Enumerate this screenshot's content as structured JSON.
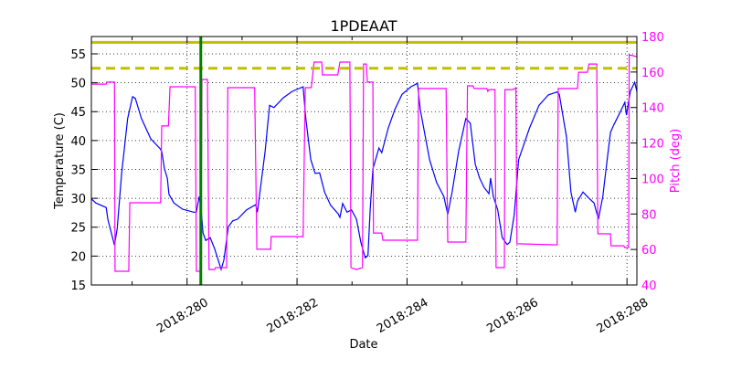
{
  "chart_data": {
    "type": "line",
    "title": "1PDEAAT",
    "xlabel": "Date",
    "ylabel": "Temperature (C)",
    "y2label": "Pitch (deg)",
    "xlim": [
      278.26,
      288.18
    ],
    "ylim": [
      15,
      58
    ],
    "y2lim": [
      40,
      180
    ],
    "x_ticks": [
      280,
      282,
      284,
      286,
      288
    ],
    "x_tick_labels": [
      "2018:280",
      "2018:282",
      "2018:284",
      "2018:286",
      "2018:288"
    ],
    "x_minor_ticks": [
      279,
      281,
      283,
      285,
      287
    ],
    "y_ticks": [
      15,
      20,
      25,
      30,
      35,
      40,
      45,
      50,
      55
    ],
    "y_tick_labels": [
      "15",
      "20",
      "25",
      "30",
      "35",
      "40",
      "45",
      "50",
      "55"
    ],
    "y2_ticks": [
      40,
      60,
      80,
      100,
      120,
      140,
      160,
      180
    ],
    "y2_tick_labels": [
      "40",
      "60",
      "80",
      "100",
      "120",
      "140",
      "160",
      "180"
    ],
    "grid": true,
    "colors": {
      "temperature": "#0000ff",
      "pitch": "#ff00ff",
      "limit": "#bfbf00",
      "marker": "#008000",
      "y2axis": "#ff00ff"
    },
    "hlines": [
      {
        "y": 57,
        "style": "solid"
      },
      {
        "y": 52.5,
        "style": "dashed"
      }
    ],
    "vlines": [
      {
        "x": 280.25
      }
    ],
    "series": [
      {
        "axis": "left",
        "x": [
          278.26,
          278.34,
          278.53,
          278.56,
          278.68,
          278.73,
          278.81,
          278.92,
          279.01,
          279.06,
          279.17,
          279.34,
          279.51,
          279.54,
          279.59,
          279.64,
          279.67,
          279.76,
          279.92,
          280.12,
          280.17,
          280.22,
          280.25,
          280.29,
          280.34,
          280.42,
          280.5,
          280.62,
          280.67,
          280.75,
          280.83,
          280.92,
          281.08,
          281.25,
          281.28,
          281.42,
          281.5,
          281.58,
          281.75,
          281.91,
          282.11,
          282.16,
          282.25,
          282.33,
          282.41,
          282.5,
          282.61,
          282.75,
          282.78,
          282.83,
          282.91,
          282.99,
          283.08,
          283.16,
          283.24,
          283.29,
          283.33,
          283.38,
          283.49,
          283.54,
          283.66,
          283.78,
          283.91,
          284.07,
          284.19,
          284.24,
          284.41,
          284.54,
          284.67,
          284.74,
          284.82,
          284.94,
          285.07,
          285.15,
          285.24,
          285.32,
          285.4,
          285.49,
          285.52,
          285.57,
          285.65,
          285.73,
          285.82,
          285.87,
          285.95,
          286.03,
          286.23,
          286.4,
          286.57,
          286.73,
          286.77,
          286.9,
          286.98,
          287.06,
          287.1,
          287.2,
          287.31,
          287.4,
          287.48,
          287.56,
          287.65,
          287.7,
          287.76,
          287.86,
          287.96,
          287.99,
          288.06,
          288.14,
          288.18
        ],
        "y": [
          29.9,
          29.2,
          28.4,
          26.3,
          21.9,
          24.8,
          34.3,
          43.8,
          47.6,
          47.3,
          43.8,
          40.3,
          38.6,
          38.1,
          35.1,
          33.5,
          30.7,
          29.2,
          28.1,
          27.6,
          27.6,
          30.3,
          28.6,
          24.0,
          22.7,
          23.2,
          21.3,
          17.7,
          19.3,
          25.1,
          26.1,
          26.4,
          28.0,
          28.9,
          27.6,
          38.2,
          46.1,
          45.7,
          47.4,
          48.5,
          49.3,
          43.8,
          36.7,
          34.3,
          34.4,
          31.1,
          28.8,
          27.3,
          26.7,
          29.1,
          27.6,
          28.0,
          26.4,
          22.4,
          19.7,
          20.1,
          28.0,
          35.1,
          38.7,
          37.9,
          42.2,
          45.4,
          48.0,
          49.3,
          49.9,
          45.4,
          36.7,
          32.7,
          30.3,
          27.2,
          31.1,
          38.2,
          43.8,
          43.0,
          35.9,
          33.5,
          31.9,
          30.8,
          33.5,
          30.3,
          28.0,
          23.2,
          22.0,
          22.4,
          27.2,
          36.7,
          42.2,
          46.1,
          47.9,
          48.4,
          48.0,
          40.6,
          31.1,
          27.6,
          29.5,
          31.1,
          30.0,
          29.2,
          26.4,
          30.3,
          37.5,
          41.4,
          42.7,
          44.6,
          46.6,
          44.4,
          48.5,
          50.1,
          48.5
        ]
      },
      {
        "axis": "right",
        "x": [
          278.26,
          278.53,
          278.54,
          278.68,
          278.69,
          278.94,
          278.96,
          279.52,
          279.54,
          279.66,
          279.69,
          280.15,
          280.17,
          280.25,
          280.27,
          280.37,
          280.4,
          280.5,
          280.52,
          280.72,
          280.74,
          281.23,
          281.27,
          281.52,
          281.53,
          282.11,
          282.15,
          282.26,
          282.31,
          282.45,
          282.46,
          282.74,
          282.78,
          282.96,
          282.98,
          283.08,
          283.19,
          283.21,
          283.26,
          283.28,
          283.38,
          283.39,
          283.54,
          283.56,
          284.19,
          284.21,
          284.71,
          284.74,
          285.07,
          285.1,
          285.2,
          285.22,
          285.45,
          285.47,
          285.49,
          285.6,
          285.62,
          285.77,
          285.78,
          285.93,
          285.98,
          286.0,
          286.73,
          286.75,
          287.1,
          287.12,
          287.28,
          287.31,
          287.45,
          287.47,
          287.7,
          287.71,
          287.94,
          287.96,
          288.03,
          288.04,
          288.18
        ],
        "y": [
          153.2,
          153.2,
          154.3,
          154.3,
          47.7,
          47.7,
          86.3,
          86.3,
          129.6,
          129.6,
          151.7,
          151.7,
          47.7,
          47.7,
          155.8,
          155.8,
          48.7,
          48.7,
          49.8,
          49.8,
          151.2,
          151.2,
          60.1,
          60.1,
          67.3,
          67.3,
          151.2,
          151.2,
          165.6,
          165.6,
          158.4,
          158.4,
          165.6,
          165.6,
          49.8,
          48.7,
          49.8,
          164.5,
          164.5,
          154.3,
          154.3,
          69.3,
          69.3,
          65.2,
          65.2,
          150.7,
          150.7,
          64.2,
          64.2,
          152.2,
          152.2,
          150.7,
          150.7,
          149.1,
          150.1,
          150.1,
          49.8,
          49.8,
          150.1,
          150.1,
          151.2,
          63.2,
          62.6,
          150.7,
          150.7,
          159.9,
          159.9,
          164.5,
          164.5,
          68.8,
          68.8,
          62.1,
          62.1,
          61.1,
          61.1,
          169.7,
          168.7
        ]
      }
    ]
  }
}
